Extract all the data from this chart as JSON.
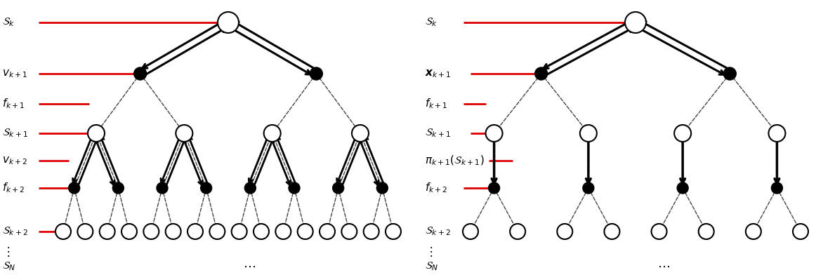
{
  "bg_color": "#ffffff",
  "red_color": "#dd0000",
  "left_labels": [
    {
      "text": "$\\mathcal{S}_k$",
      "has_line": true,
      "line_short": false
    },
    {
      "text": "$v_{k+1}$",
      "has_line": true,
      "line_short": false
    },
    {
      "text": "$f_{k+1}$",
      "has_line": true,
      "line_short": true
    },
    {
      "text": "$\\mathcal{S}_{k+1}$",
      "has_line": true,
      "line_short": true
    },
    {
      "text": "$v_{k+2}$",
      "has_line": true,
      "line_short": true
    },
    {
      "text": "$f_{k+2}$",
      "has_line": true,
      "line_short": true
    },
    {
      "text": "$\\mathcal{S}_{k+2}$",
      "has_line": true,
      "line_short": true
    },
    {
      "text": "$\\vdots$",
      "has_line": false,
      "line_short": false
    },
    {
      "text": "$\\mathcal{S}_N$",
      "has_line": false,
      "line_short": false
    }
  ],
  "right_labels": [
    {
      "text": "$\\mathcal{S}_k$",
      "has_line": true,
      "line_short": false
    },
    {
      "text": "$\\boldsymbol{x}_{k+1}$",
      "has_line": true,
      "line_short": false
    },
    {
      "text": "$f_{k+1}$",
      "has_line": true,
      "line_short": true
    },
    {
      "text": "$\\mathcal{S}_{k+1}$",
      "has_line": true,
      "line_short": true
    },
    {
      "text": "$\\pi_{k+1}(\\mathcal{S}_{k+1})$",
      "has_line": true,
      "line_short": true
    },
    {
      "text": "$f_{k+2}$",
      "has_line": true,
      "line_short": true
    },
    {
      "text": "$\\mathcal{S}_{k+2}$",
      "has_line": true,
      "line_short": true
    },
    {
      "text": "$\\vdots$",
      "has_line": false,
      "line_short": false
    },
    {
      "text": "$\\mathcal{S}_N$",
      "has_line": false,
      "line_short": false
    }
  ]
}
